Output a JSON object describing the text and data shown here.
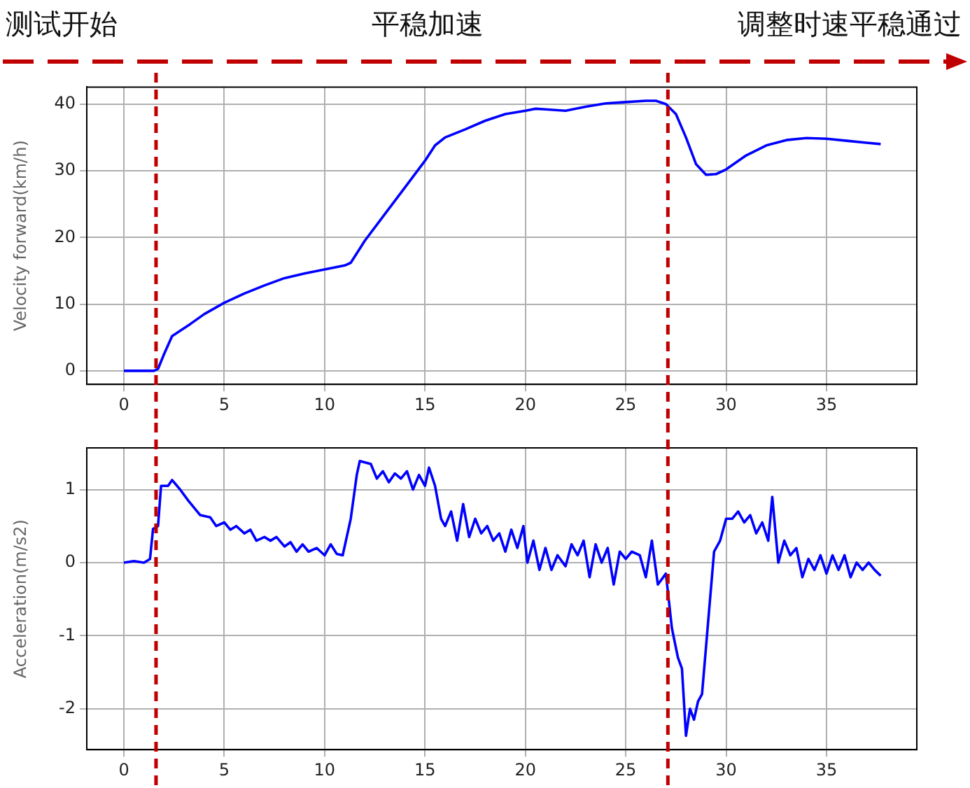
{
  "chart_data": [
    {
      "type": "line",
      "ylabel": "Velocity forward(km/h)",
      "annotations": [
        "测试开始",
        "平稳加速",
        "调整时速平稳通过"
      ],
      "xlim": [
        -1.85,
        39.5
      ],
      "xticks": [
        0,
        5,
        10,
        15,
        20,
        25,
        30,
        35
      ],
      "ylim": [
        -2.03,
        42.55
      ],
      "yticks": [
        0,
        10,
        20,
        30,
        40
      ],
      "grid": true,
      "legend": false,
      "marker": "none",
      "line_style": "solid",
      "ref_lines": [
        {
          "axis": "x",
          "value": 1.6,
          "color": "#c00000",
          "line_style": "dashed"
        },
        {
          "axis": "x",
          "value": 27.1,
          "color": "#c00000",
          "line_style": "dashed"
        }
      ],
      "series": [
        {
          "color": "#0000ff",
          "x": [
            0,
            1.5,
            1.7,
            2.0,
            2.4,
            3.3,
            4,
            5,
            6,
            7,
            8,
            9,
            10,
            11,
            11.3,
            12,
            13,
            14,
            15,
            15.5,
            16,
            17,
            18,
            19,
            20,
            20.5,
            21,
            22,
            23,
            24,
            25,
            26,
            26.5,
            27,
            27.5,
            28,
            28.5,
            29,
            29.5,
            30,
            31,
            32,
            33,
            34,
            35,
            36,
            37,
            37.7
          ],
          "values": [
            0,
            0,
            0.3,
            2.5,
            5.2,
            7,
            8.5,
            10.2,
            11.6,
            12.8,
            13.9,
            14.6,
            15.2,
            15.8,
            16.2,
            19.5,
            23.5,
            27.5,
            31.5,
            33.8,
            35,
            36.2,
            37.5,
            38.5,
            39,
            39.3,
            39.2,
            39,
            39.6,
            40.1,
            40.3,
            40.5,
            40.5,
            40,
            38.5,
            35,
            31,
            29.4,
            29.5,
            30.2,
            32.3,
            33.8,
            34.6,
            34.9,
            34.8,
            34.5,
            34.2,
            34.0
          ]
        }
      ]
    },
    {
      "type": "line",
      "ylabel": "Acceleration(m/s2)",
      "xlim": [
        -1.85,
        39.5
      ],
      "xticks": [
        0,
        5,
        10,
        15,
        20,
        25,
        30,
        35
      ],
      "ylim": [
        -2.56,
        1.57
      ],
      "yticks": [
        -2,
        -1,
        0,
        1
      ],
      "grid": true,
      "legend": false,
      "marker": "none",
      "line_style": "solid",
      "ref_lines": [
        {
          "axis": "x",
          "value": 1.6,
          "color": "#c00000",
          "line_style": "dashed"
        },
        {
          "axis": "x",
          "value": 27.1,
          "color": "#c00000",
          "line_style": "dashed"
        }
      ],
      "series": [
        {
          "color": "#0000ff",
          "x": [
            0,
            0.5,
            1,
            1.3,
            1.45,
            1.7,
            1.85,
            2.2,
            2.4,
            2.8,
            3.2,
            3.8,
            4.3,
            4.6,
            5,
            5.3,
            5.6,
            6,
            6.3,
            6.6,
            7,
            7.3,
            7.6,
            8,
            8.3,
            8.6,
            8.9,
            9.2,
            9.6,
            10,
            10.3,
            10.6,
            10.9,
            11.3,
            11.6,
            11.75,
            12.3,
            12.6,
            12.9,
            13.2,
            13.5,
            13.8,
            14.1,
            14.4,
            14.7,
            15,
            15.2,
            15.5,
            15.8,
            16,
            16.3,
            16.6,
            16.9,
            17.2,
            17.5,
            17.8,
            18.1,
            18.4,
            18.7,
            19,
            19.3,
            19.6,
            19.9,
            20.1,
            20.4,
            20.7,
            21,
            21.3,
            21.6,
            22,
            22.3,
            22.6,
            22.9,
            23.2,
            23.5,
            23.8,
            24.1,
            24.4,
            24.7,
            25,
            25.3,
            25.7,
            26,
            26.3,
            26.6,
            27,
            27.3,
            27.6,
            27.8,
            28.0,
            28.2,
            28.4,
            28.6,
            28.8,
            29.0,
            29.4,
            29.7,
            30,
            30.3,
            30.6,
            30.9,
            31.2,
            31.5,
            31.8,
            32.1,
            32.3,
            32.6,
            32.9,
            33.2,
            33.5,
            33.8,
            34.1,
            34.4,
            34.7,
            35,
            35.3,
            35.6,
            35.9,
            36.2,
            36.5,
            36.8,
            37.1,
            37.4,
            37.7
          ],
          "values": [
            0,
            0.02,
            0,
            0.05,
            0.46,
            0.5,
            1.05,
            1.05,
            1.13,
            1.0,
            0.85,
            0.65,
            0.62,
            0.5,
            0.55,
            0.45,
            0.5,
            0.4,
            0.45,
            0.3,
            0.35,
            0.3,
            0.35,
            0.22,
            0.28,
            0.15,
            0.25,
            0.15,
            0.2,
            0.1,
            0.25,
            0.12,
            0.1,
            0.6,
            1.2,
            1.39,
            1.35,
            1.15,
            1.25,
            1.1,
            1.22,
            1.15,
            1.25,
            1.0,
            1.2,
            1.05,
            1.3,
            1.05,
            0.6,
            0.5,
            0.7,
            0.3,
            0.8,
            0.35,
            0.6,
            0.4,
            0.5,
            0.3,
            0.4,
            0.15,
            0.45,
            0.2,
            0.5,
            0,
            0.3,
            -0.1,
            0.2,
            -0.1,
            0.1,
            -0.05,
            0.25,
            0.1,
            0.3,
            -0.2,
            0.25,
            0,
            0.2,
            -0.3,
            0.15,
            0.05,
            0.15,
            0.1,
            -0.2,
            0.3,
            -0.3,
            -0.15,
            -0.9,
            -1.3,
            -1.45,
            -2.37,
            -2.0,
            -2.15,
            -1.9,
            -1.8,
            -1.15,
            0.15,
            0.3,
            0.6,
            0.6,
            0.7,
            0.55,
            0.65,
            0.4,
            0.55,
            0.3,
            0.9,
            0,
            0.3,
            0.1,
            0.2,
            -0.2,
            0.05,
            -0.1,
            0.1,
            -0.15,
            0.1,
            -0.1,
            0.1,
            -0.2,
            0,
            -0.1,
            0,
            -0.1,
            -0.18
          ]
        }
      ]
    }
  ]
}
